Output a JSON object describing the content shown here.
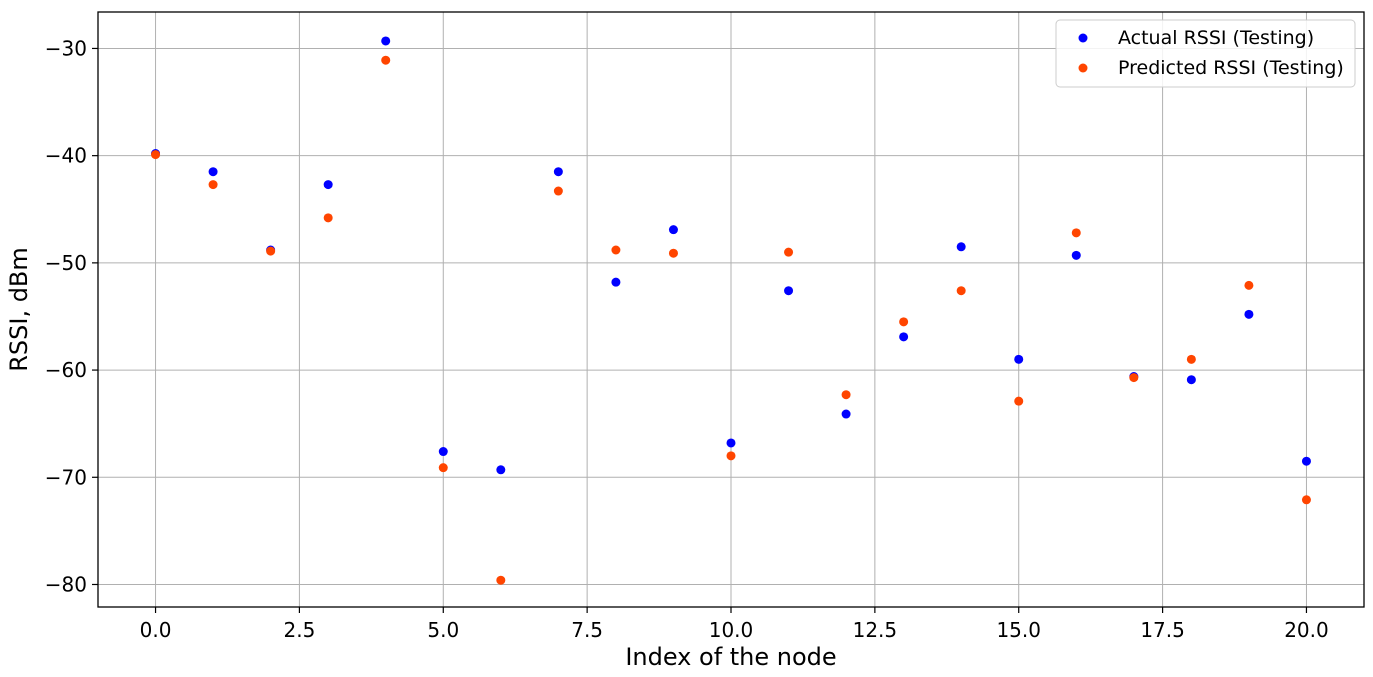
{
  "chart_data": {
    "type": "scatter",
    "title": "",
    "xlabel": "Index of the node",
    "ylabel": "RSSI, dBm",
    "xlim": [
      -1,
      21
    ],
    "ylim": [
      -82.1,
      -26.6
    ],
    "xticks": [
      0.0,
      2.5,
      5.0,
      7.5,
      10.0,
      12.5,
      15.0,
      17.5,
      20.0
    ],
    "xtick_labels": [
      "0.0",
      "2.5",
      "5.0",
      "7.5",
      "10.0",
      "12.5",
      "15.0",
      "17.5",
      "20.0"
    ],
    "yticks": [
      -30,
      -40,
      -50,
      -60,
      -70,
      -80
    ],
    "ytick_labels": [
      "−30",
      "−40",
      "−50",
      "−60",
      "−70",
      "−80"
    ],
    "grid": true,
    "legend_position": "top-right",
    "x": [
      0,
      1,
      2,
      3,
      4,
      5,
      6,
      7,
      8,
      9,
      10,
      11,
      12,
      13,
      14,
      15,
      16,
      17,
      18,
      19,
      20
    ],
    "series": [
      {
        "name": "Actual RSSI (Testing)",
        "color": "#0000ff",
        "values": [
          -39.8,
          -41.5,
          -48.8,
          -42.7,
          -29.3,
          -67.6,
          -69.3,
          -41.5,
          -51.8,
          -46.9,
          -66.8,
          -52.6,
          -64.1,
          -56.9,
          -48.5,
          -59.0,
          -49.3,
          -60.6,
          -60.9,
          -54.8,
          -68.5
        ]
      },
      {
        "name": "Predicted RSSI (Testing)",
        "color": "#ff4500",
        "values": [
          -39.9,
          -42.7,
          -48.9,
          -45.8,
          -31.1,
          -69.1,
          -79.6,
          -43.3,
          -48.8,
          -49.1,
          -68.0,
          -49.0,
          -62.3,
          -55.5,
          -52.6,
          -62.9,
          -47.2,
          -60.7,
          -59.0,
          -52.1,
          -72.1
        ]
      }
    ]
  }
}
